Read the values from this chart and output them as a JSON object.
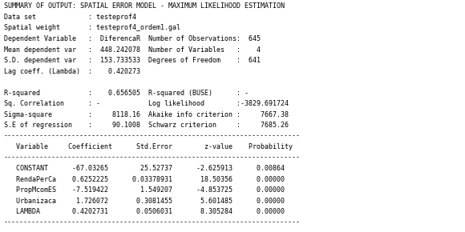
{
  "title": "SUMMARY OF OUTPUT: SPATIAL ERROR MODEL - MAXIMUM LIKELIHOOD ESTIMATION",
  "lines_top": [
    "Data set             : testeprof4",
    "Spatial weight       : testeprof4_ordem1.gal",
    "Dependent Variable   :  DiferencaR  Number of Observations:  645",
    "Mean dependent var   :  448.242078  Number of Variables   :    4",
    "S.D. dependent var   :  153.733533  Degrees of Freedom    :  641",
    "Lag coeff. (Lambda)  :    0.420273",
    "",
    "R-squared            :    0.656505  R-squared (BUSE)      : -",
    "Sq. Correlation      : -            Log likelihood        :-3829.691724",
    "Sigma-square         :     8118.16  Akaike info criterion :     7667.38",
    "S.E of regression    :     90.1008  Schwarz criterion     :     7685.26"
  ],
  "divider": "--------------------------------------------------------------------------",
  "header": "   Variable     Coefficient      Std.Error        z-value    Probability",
  "table_rows": [
    "   CONSTANT      -67.03265        25.52737      -2.625913      0.00864",
    "   RendaPerCa    0.6252225      0.03378931       18.50356      0.00000",
    "   PropMcomES    -7.519422        1.549207      -4.853725      0.00000",
    "   Urbanizaca     1.726072       0.3081455       5.601485      0.00000",
    "   LAMBDA        0.4202731       0.0506031       8.305284      0.00000"
  ],
  "bg_color": "#ffffff",
  "text_color": "#000000",
  "font_size": 6.0,
  "font_family": "monospace"
}
